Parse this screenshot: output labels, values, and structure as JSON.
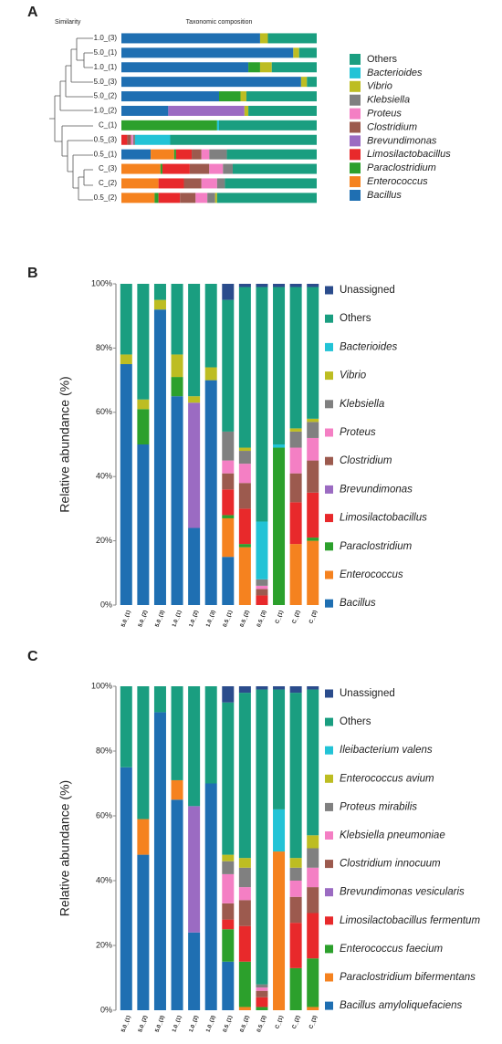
{
  "chart_data": [
    {
      "type": "bar",
      "orientation": "horizontal",
      "stacked": true,
      "panel": "A",
      "title": "Taxonomic composition",
      "dendrogram_label": "Similarity",
      "categories": [
        "1.0_(3)",
        "5.0_(1)",
        "1.0_(1)",
        "5.0_(3)",
        "5.0_(2)",
        "1.0_(2)",
        "C_(1)",
        "0.5_(3)",
        "0.5_(1)",
        "C_(3)",
        "C_(2)",
        "0.5_(2)"
      ],
      "category_colors": [
        "#f39c12",
        "#1f77d4",
        "#f39c12",
        "#1f77d4",
        "#1f77d4",
        "#f39c12",
        "#e53935",
        "#2ca02c",
        "#2ca02c",
        "#e53935",
        "#e53935",
        "#2ca02c"
      ],
      "xlim": [
        0,
        100
      ],
      "series": [
        {
          "name": "Bacillus",
          "italic": true,
          "color": "#1f6fb2",
          "values": [
            71,
            88,
            65,
            92,
            50,
            24,
            0,
            0,
            15,
            0,
            0,
            0
          ]
        },
        {
          "name": "Enterococcus",
          "italic": true,
          "color": "#f5821f",
          "values": [
            0,
            0,
            0,
            0,
            0,
            0,
            0,
            0,
            12,
            20,
            19,
            17
          ]
        },
        {
          "name": "Paraclostridium",
          "italic": true,
          "color": "#2ca02c",
          "values": [
            0,
            0,
            6,
            0,
            11,
            0,
            49,
            0,
            1,
            1,
            0,
            2
          ]
        },
        {
          "name": "Limosilactobacillus",
          "italic": true,
          "color": "#e8292b",
          "values": [
            0,
            0,
            0,
            0,
            0,
            0,
            0,
            3,
            8,
            14,
            13,
            11
          ]
        },
        {
          "name": "Brevundimonas",
          "italic": true,
          "color": "#9b6bc2",
          "values": [
            0,
            0,
            0,
            0,
            0,
            39,
            0,
            0,
            0,
            0,
            0,
            0
          ]
        },
        {
          "name": "Clostridium",
          "italic": true,
          "color": "#9c5a4e",
          "values": [
            0,
            0,
            0,
            0,
            0,
            0,
            0,
            2,
            5,
            10,
            9,
            8
          ]
        },
        {
          "name": "Proteus",
          "italic": true,
          "color": "#f47fc4",
          "values": [
            0,
            0,
            0,
            0,
            0,
            0,
            0,
            1,
            4,
            7,
            8,
            6
          ]
        },
        {
          "name": "Klebsiella",
          "italic": true,
          "color": "#808080",
          "values": [
            0,
            0,
            0,
            0,
            0,
            0,
            0,
            1,
            9,
            5,
            4,
            4
          ]
        },
        {
          "name": "Vibrio",
          "italic": true,
          "color": "#bdbd22",
          "values": [
            4,
            3,
            6,
            3,
            3,
            2,
            0,
            0,
            0,
            0,
            0,
            1
          ]
        },
        {
          "name": "Bacterioides",
          "italic": true,
          "color": "#22c3d6",
          "values": [
            0,
            0,
            0,
            0,
            0,
            0,
            1,
            18,
            0,
            0,
            0,
            0
          ]
        },
        {
          "name": "Others",
          "italic": false,
          "color": "#1a9e80",
          "values": [
            25,
            9,
            23,
            5,
            36,
            35,
            50,
            75,
            46,
            43,
            47,
            51
          ]
        }
      ]
    },
    {
      "type": "bar",
      "orientation": "vertical",
      "stacked": true,
      "panel": "B",
      "ylabel": "Relative abundance (%)",
      "categories": [
        "5.0_(1)",
        "5.0_(2)",
        "5.0_(3)",
        "1.0_(1)",
        "1.0_(2)",
        "1.0_(3)",
        "0.5_(1)",
        "0.5_(2)",
        "0.5_(3)",
        "C_(1)",
        "C_(2)",
        "C_(3)"
      ],
      "category_colors": [
        "#1f77d4",
        "#1f77d4",
        "#1f77d4",
        "#f39c12",
        "#f39c12",
        "#f39c12",
        "#2ca02c",
        "#2ca02c",
        "#2ca02c",
        "#e53935",
        "#e53935",
        "#e53935"
      ],
      "ylim": [
        0,
        100
      ],
      "yticks": [
        {
          "value": 0,
          "label": "0%"
        },
        {
          "value": 20,
          "label": "20%"
        },
        {
          "value": 40,
          "label": "40%"
        },
        {
          "value": 60,
          "label": "60%"
        },
        {
          "value": 80,
          "label": "80%"
        },
        {
          "value": 100,
          "label": "100%"
        }
      ],
      "series": [
        {
          "name": "Bacillus",
          "italic": true,
          "color": "#1f6fb2",
          "values": [
            75,
            50,
            92,
            65,
            24,
            70,
            15,
            0,
            0,
            0,
            0,
            0
          ]
        },
        {
          "name": "Enterococcus",
          "italic": true,
          "color": "#f5821f",
          "values": [
            0,
            0,
            0,
            0,
            0,
            0,
            12,
            18,
            0,
            0,
            19,
            20
          ]
        },
        {
          "name": "Paraclostridium",
          "italic": true,
          "color": "#2ca02c",
          "values": [
            0,
            11,
            0,
            6,
            0,
            0,
            1,
            1,
            0,
            49,
            0,
            1
          ]
        },
        {
          "name": "Limosilactobacillus",
          "italic": true,
          "color": "#e8292b",
          "values": [
            0,
            0,
            0,
            0,
            0,
            0,
            8,
            11,
            3,
            0,
            13,
            14
          ]
        },
        {
          "name": "Brevundimonas",
          "italic": true,
          "color": "#9b6bc2",
          "values": [
            0,
            0,
            0,
            0,
            39,
            0,
            0,
            0,
            0,
            0,
            0,
            0
          ]
        },
        {
          "name": "Clostridium",
          "italic": true,
          "color": "#9c5a4e",
          "values": [
            0,
            0,
            0,
            0,
            0,
            0,
            5,
            8,
            2,
            0,
            9,
            10
          ]
        },
        {
          "name": "Proteus",
          "italic": true,
          "color": "#f47fc4",
          "values": [
            0,
            0,
            0,
            0,
            0,
            0,
            4,
            6,
            1,
            0,
            8,
            7
          ]
        },
        {
          "name": "Klebsiella",
          "italic": true,
          "color": "#808080",
          "values": [
            0,
            0,
            0,
            0,
            0,
            0,
            9,
            4,
            2,
            0,
            5,
            5
          ]
        },
        {
          "name": "Vibrio",
          "italic": true,
          "color": "#bdbd22",
          "values": [
            3,
            3,
            3,
            7,
            2,
            4,
            0,
            1,
            0,
            0,
            1,
            1
          ]
        },
        {
          "name": "Bacterioides",
          "italic": true,
          "color": "#22c3d6",
          "values": [
            0,
            0,
            0,
            0,
            0,
            0,
            0,
            0,
            18,
            1,
            0,
            0
          ]
        },
        {
          "name": "Others",
          "italic": false,
          "color": "#1a9e80",
          "values": [
            22,
            36,
            5,
            22,
            35,
            26,
            41,
            50,
            73,
            49,
            44,
            41
          ]
        },
        {
          "name": "Unassigned",
          "italic": false,
          "color": "#2b4c8c",
          "values": [
            0,
            0,
            0,
            0,
            0,
            0,
            5,
            1,
            1,
            1,
            1,
            1
          ]
        }
      ]
    },
    {
      "type": "bar",
      "orientation": "vertical",
      "stacked": true,
      "panel": "C",
      "ylabel": "Relative abundance (%)",
      "categories": [
        "5.0_(1)",
        "5.0_(2)",
        "5.0_(3)",
        "1.0_(1)",
        "1.0_(2)",
        "1.0_(3)",
        "0.5_(1)",
        "0.5_(2)",
        "0.5_(3)",
        "C_(1)",
        "C_(2)",
        "C_(3)"
      ],
      "category_colors": [
        "#1f77d4",
        "#1f77d4",
        "#1f77d4",
        "#f39c12",
        "#f39c12",
        "#f39c12",
        "#2ca02c",
        "#2ca02c",
        "#2ca02c",
        "#e53935",
        "#e53935",
        "#e53935"
      ],
      "ylim": [
        0,
        100
      ],
      "yticks": [
        {
          "value": 0,
          "label": "0%"
        },
        {
          "value": 20,
          "label": "20%"
        },
        {
          "value": 40,
          "label": "40%"
        },
        {
          "value": 60,
          "label": "60%"
        },
        {
          "value": 80,
          "label": "80%"
        },
        {
          "value": 100,
          "label": "100%"
        }
      ],
      "series": [
        {
          "name": "Bacillus amyloliquefaciens",
          "italic": true,
          "color": "#1f6fb2",
          "values": [
            75,
            48,
            92,
            65,
            24,
            70,
            15,
            0,
            0,
            0,
            0,
            0
          ]
        },
        {
          "name": "Paraclostridium bifermentans",
          "italic": true,
          "color": "#f5821f",
          "values": [
            0,
            11,
            0,
            6,
            0,
            0,
            0,
            1,
            0,
            49,
            0,
            1
          ]
        },
        {
          "name": "Enterococcus faecium",
          "italic": true,
          "color": "#2ca02c",
          "values": [
            0,
            0,
            0,
            0,
            0,
            0,
            10,
            14,
            1,
            0,
            13,
            15
          ]
        },
        {
          "name": "Limosilactobacillus fermentum",
          "italic": true,
          "color": "#e8292b",
          "values": [
            0,
            0,
            0,
            0,
            0,
            0,
            3,
            11,
            3,
            0,
            14,
            14
          ]
        },
        {
          "name": "Brevundimonas vesicularis",
          "italic": true,
          "color": "#9b6bc2",
          "values": [
            0,
            0,
            0,
            0,
            39,
            0,
            0,
            0,
            0,
            0,
            0,
            0
          ]
        },
        {
          "name": "Clostridium innocuum",
          "italic": true,
          "color": "#9c5a4e",
          "values": [
            0,
            0,
            0,
            0,
            0,
            0,
            5,
            8,
            2,
            0,
            8,
            8
          ]
        },
        {
          "name": "Klebsiella pneumoniae",
          "italic": true,
          "color": "#f47fc4",
          "values": [
            0,
            0,
            0,
            0,
            0,
            0,
            9,
            4,
            1,
            0,
            5,
            6
          ]
        },
        {
          "name": "Proteus mirabilis",
          "italic": true,
          "color": "#808080",
          "values": [
            0,
            0,
            0,
            0,
            0,
            0,
            4,
            6,
            1,
            0,
            4,
            6
          ]
        },
        {
          "name": "Enterococcus avium",
          "italic": true,
          "color": "#bdbd22",
          "values": [
            0,
            0,
            0,
            0,
            0,
            0,
            2,
            3,
            0,
            0,
            3,
            4
          ]
        },
        {
          "name": "Ileibacterium valens",
          "italic": true,
          "color": "#22c3d6",
          "values": [
            0,
            0,
            0,
            0,
            0,
            0,
            0,
            0,
            0,
            13,
            0,
            0
          ]
        },
        {
          "name": "Others",
          "italic": false,
          "color": "#1a9e80",
          "values": [
            25,
            41,
            8,
            29,
            37,
            30,
            47,
            51,
            91,
            37,
            51,
            45
          ]
        },
        {
          "name": "Unassigned",
          "italic": false,
          "color": "#2b4c8c",
          "values": [
            0,
            0,
            0,
            0,
            0,
            0,
            5,
            2,
            1,
            1,
            2,
            1
          ]
        }
      ]
    }
  ]
}
